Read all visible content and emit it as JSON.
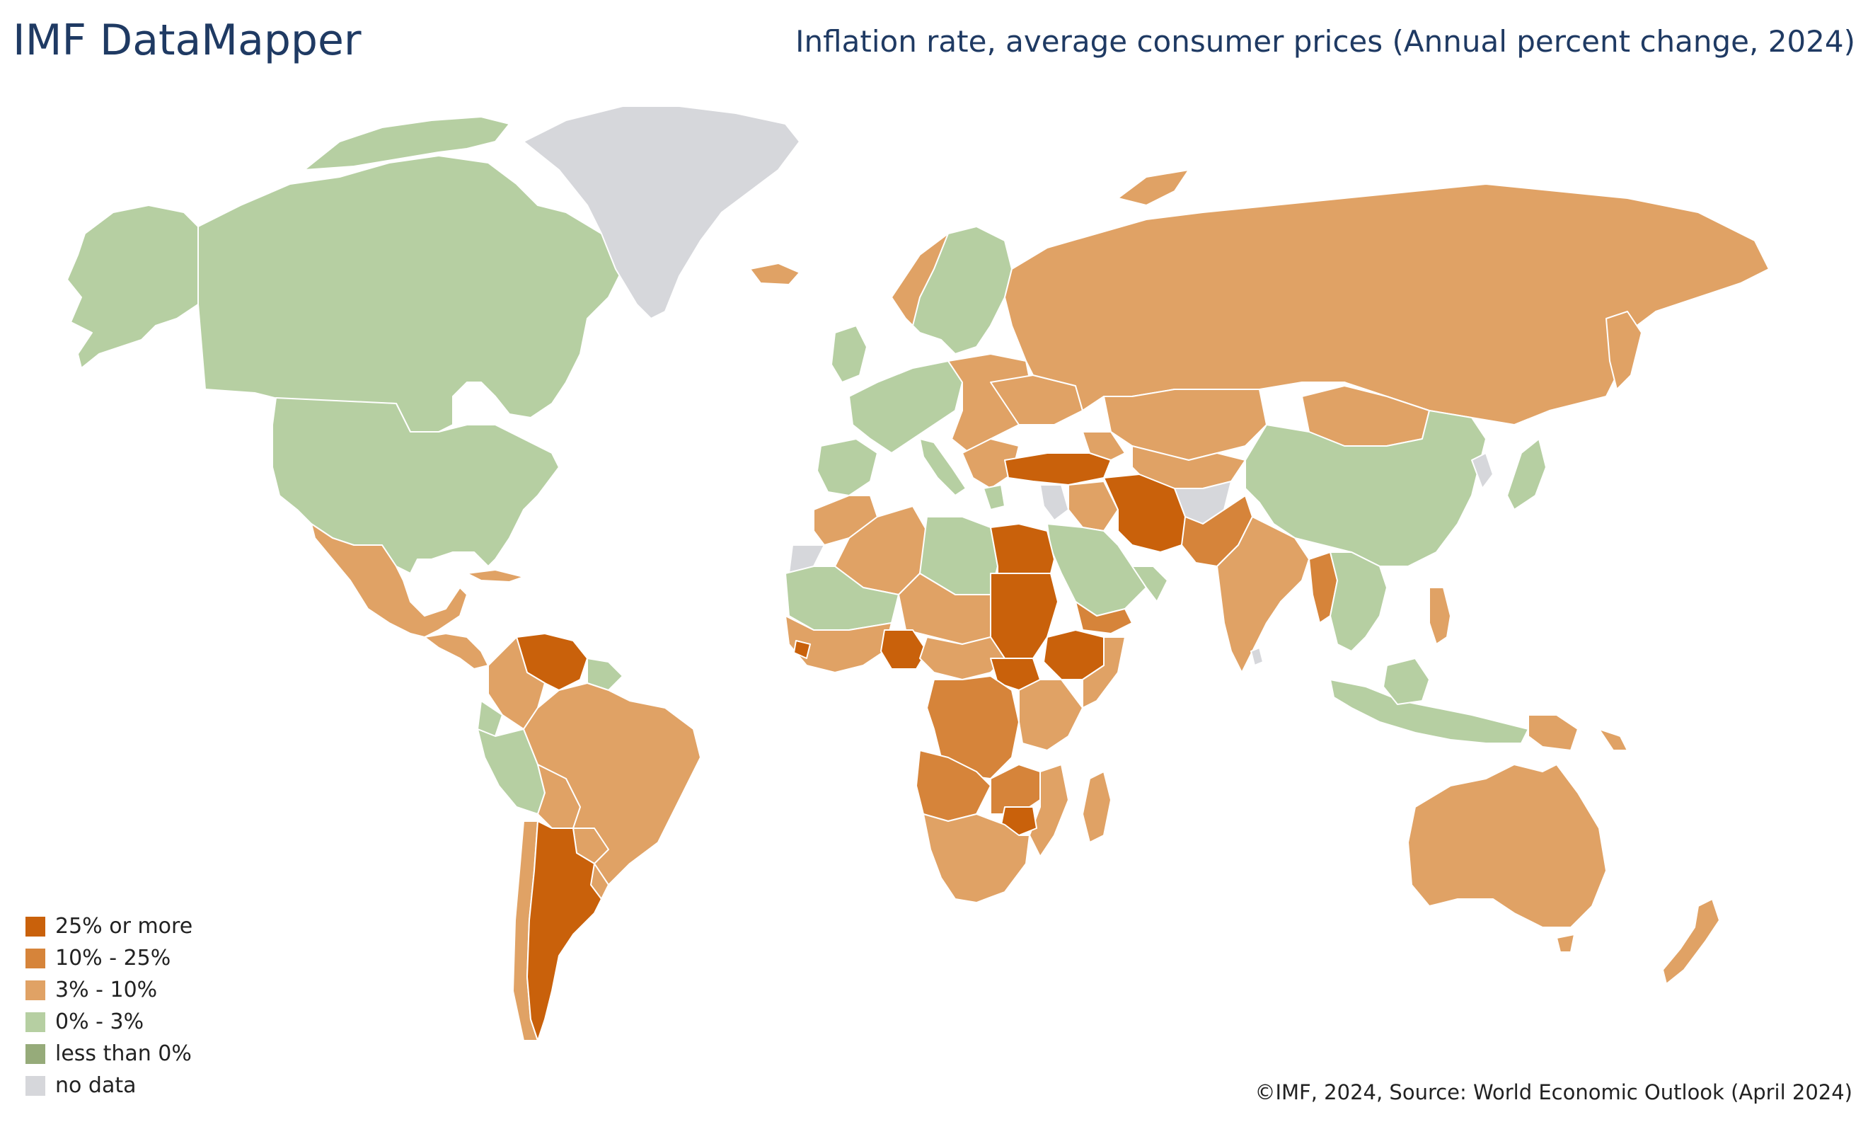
{
  "header": {
    "brand": "IMF DataMapper",
    "title": "Inflation rate, average consumer prices (Annual percent change, 2024)"
  },
  "legend": {
    "items": [
      {
        "label": "25% or more",
        "color": "#c9610b"
      },
      {
        "label": "10% - 25%",
        "color": "#d6843a"
      },
      {
        "label": "3% - 10%",
        "color": "#e0a265"
      },
      {
        "label": "0% - 3%",
        "color": "#b6cfa2"
      },
      {
        "label": "less than 0%",
        "color": "#96ab7a"
      },
      {
        "label": "no data",
        "color": "#d6d7db"
      }
    ]
  },
  "footer": {
    "source": "©IMF, 2024, Source: World Economic Outlook (April 2024)"
  },
  "colors": {
    "text_brand": "#1f3a63",
    "ocean": "#ffffff",
    "border": "#ffffff"
  }
}
